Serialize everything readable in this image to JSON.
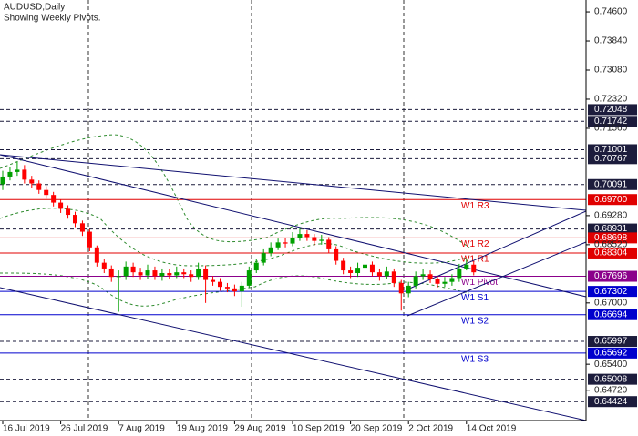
{
  "chart_data": {
    "type": "candlestick",
    "title": "AUDUSD,Daily",
    "subtitle": "Showing Weekly Pivots.",
    "categories": [
      "16 Jul 2019",
      null,
      null,
      null,
      null,
      null,
      null,
      null,
      "26 Jul 2019",
      null,
      null,
      null,
      null,
      null,
      null,
      null,
      "7 Aug 2019",
      null,
      null,
      null,
      null,
      null,
      null,
      null,
      "19 Aug 2019",
      null,
      null,
      null,
      null,
      null,
      null,
      null,
      "29 Aug 2019",
      null,
      null,
      null,
      null,
      null,
      null,
      null,
      "10 Sep 2019",
      null,
      null,
      null,
      null,
      null,
      null,
      null,
      "20 Sep 2019",
      null,
      null,
      null,
      null,
      null,
      null,
      null,
      "2 Oct 2019",
      null,
      null,
      null,
      null,
      null,
      null,
      null,
      "14 Oct 2019",
      null
    ],
    "open": [
      0.701,
      0.703,
      0.7042,
      0.7048,
      0.7022,
      0.7012,
      0.6995,
      0.6982,
      0.6962,
      0.6946,
      0.693,
      0.6908,
      0.6886,
      0.6845,
      0.6805,
      0.679,
      0.6768,
      0.677,
      0.6795,
      0.678,
      0.6772,
      0.6785,
      0.677,
      0.6778,
      0.6772,
      0.678,
      0.6775,
      0.6768,
      0.679,
      0.676,
      0.6755,
      0.6742,
      0.6738,
      0.673,
      0.6745,
      0.6785,
      0.6805,
      0.683,
      0.6845,
      0.6858,
      0.6855,
      0.687,
      0.688,
      0.6872,
      0.6862,
      0.6865,
      0.684,
      0.681,
      0.6785,
      0.6778,
      0.6792,
      0.68,
      0.678,
      0.677,
      0.6782,
      0.6752,
      0.6725,
      0.6745,
      0.677,
      0.6775,
      0.6762,
      0.675,
      0.6755,
      0.6765,
      0.679,
      0.68
    ],
    "high": [
      0.7045,
      0.7055,
      0.7068,
      0.706,
      0.7032,
      0.702,
      0.7005,
      0.699,
      0.697,
      0.6955,
      0.6938,
      0.6915,
      0.6892,
      0.685,
      0.6815,
      0.6798,
      0.6785,
      0.6808,
      0.6805,
      0.6792,
      0.68,
      0.6795,
      0.679,
      0.6788,
      0.6795,
      0.679,
      0.6785,
      0.6805,
      0.6798,
      0.677,
      0.6765,
      0.6752,
      0.6748,
      0.6755,
      0.6795,
      0.6815,
      0.684,
      0.6858,
      0.6868,
      0.687,
      0.6885,
      0.6895,
      0.689,
      0.688,
      0.6878,
      0.6872,
      0.6848,
      0.6818,
      0.6795,
      0.6805,
      0.6812,
      0.6808,
      0.679,
      0.6795,
      0.679,
      0.676,
      0.6755,
      0.6782,
      0.6788,
      0.6785,
      0.677,
      0.6768,
      0.6775,
      0.6802,
      0.6815,
      0.6808
    ],
    "low": [
      0.6995,
      0.702,
      0.7032,
      0.7012,
      0.7,
      0.6985,
      0.6972,
      0.6952,
      0.6935,
      0.692,
      0.6898,
      0.6875,
      0.6835,
      0.6795,
      0.6778,
      0.6755,
      0.6677,
      0.676,
      0.6768,
      0.676,
      0.6762,
      0.676,
      0.6758,
      0.6762,
      0.6765,
      0.6765,
      0.6755,
      0.676,
      0.67,
      0.6745,
      0.6732,
      0.6728,
      0.6718,
      0.669,
      0.674,
      0.6778,
      0.6798,
      0.6822,
      0.6838,
      0.6845,
      0.6848,
      0.6862,
      0.6862,
      0.685,
      0.6852,
      0.683,
      0.68,
      0.6775,
      0.6765,
      0.6768,
      0.6785,
      0.677,
      0.6758,
      0.6762,
      0.6742,
      0.668,
      0.6715,
      0.6738,
      0.676,
      0.6752,
      0.674,
      0.6742,
      0.6745,
      0.6755,
      0.6785,
      0.6772
    ],
    "close": [
      0.703,
      0.7042,
      0.7048,
      0.7022,
      0.7012,
      0.6995,
      0.6982,
      0.6962,
      0.6946,
      0.693,
      0.6908,
      0.6886,
      0.6845,
      0.6805,
      0.679,
      0.6768,
      0.677,
      0.6795,
      0.678,
      0.6772,
      0.6785,
      0.677,
      0.6778,
      0.6772,
      0.678,
      0.6775,
      0.6768,
      0.679,
      0.676,
      0.6755,
      0.6742,
      0.6738,
      0.673,
      0.6745,
      0.6785,
      0.6805,
      0.683,
      0.6845,
      0.6858,
      0.6855,
      0.687,
      0.688,
      0.6872,
      0.6862,
      0.6865,
      0.684,
      0.681,
      0.6785,
      0.6778,
      0.6792,
      0.68,
      0.678,
      0.677,
      0.6782,
      0.6752,
      0.6725,
      0.6745,
      0.677,
      0.6775,
      0.6762,
      0.675,
      0.6755,
      0.6765,
      0.679,
      0.68,
      0.678
    ],
    "up_color": "#00a000",
    "down_color": "#ff0000",
    "ylim": [
      0.6393,
      0.7491
    ],
    "yticks": [
      {
        "value": 0.746,
        "label": "0.74600"
      },
      {
        "value": 0.7384,
        "label": "0.73840"
      },
      {
        "value": 0.7308,
        "label": "0.73080"
      },
      {
        "value": 0.7232,
        "label": "0.72320"
      },
      {
        "value": 0.7156,
        "label": "0.71560"
      },
      {
        "value": 0.6928,
        "label": "0.69280"
      },
      {
        "value": 0.6852,
        "label": "0.68520"
      },
      {
        "value": 0.67,
        "label": "0.67000"
      },
      {
        "value": 0.654,
        "label": "0.65400"
      },
      {
        "value": 0.6472,
        "label": "0.64720"
      }
    ],
    "levels": [
      {
        "value": 0.72048,
        "label": "0.72048",
        "style": "dashed",
        "color": "#1c1c3c"
      },
      {
        "value": 0.71742,
        "label": "0.71742",
        "style": "dashed",
        "color": "#1c1c3c"
      },
      {
        "value": 0.71001,
        "label": "0.71001",
        "style": "dashed",
        "color": "#1c1c3c"
      },
      {
        "value": 0.70767,
        "label": "0.70767",
        "style": "dashed",
        "color": "#1c1c3c"
      },
      {
        "value": 0.70091,
        "label": "0.70091",
        "style": "dashed",
        "color": "#1c1c3c"
      },
      {
        "value": 0.697,
        "label": "0.69700",
        "style": "solid",
        "color": "#e00000",
        "name": "W1 R3"
      },
      {
        "value": 0.68931,
        "label": "0.68931",
        "style": "dashed",
        "color": "#1c1c3c"
      },
      {
        "value": 0.68698,
        "label": "0.68698",
        "style": "solid",
        "color": "#e00000",
        "name": "W1 R2"
      },
      {
        "value": 0.68304,
        "label": "0.68304",
        "style": "solid",
        "color": "#e00000",
        "name": "W1 R1"
      },
      {
        "value": 0.67696,
        "label": "0.67696",
        "style": "solid",
        "color": "#8b008b",
        "name": "W1 Pivot"
      },
      {
        "value": 0.67302,
        "label": "0.67302",
        "style": "solid",
        "color": "#0000cd",
        "name": "W1 S1"
      },
      {
        "value": 0.66694,
        "label": "0.66694",
        "style": "solid",
        "color": "#0000cd",
        "name": "W1 S2"
      },
      {
        "value": 0.65997,
        "label": "0.65997",
        "style": "dashed",
        "color": "#1c1c3c"
      },
      {
        "value": 0.65692,
        "label": "0.65692",
        "style": "solid",
        "color": "#0000cd",
        "name": "W1 S3"
      },
      {
        "value": 0.65008,
        "label": "0.65008",
        "style": "dashed",
        "color": "#1c1c3c"
      },
      {
        "value": 0.64424,
        "label": "0.64424",
        "style": "dashed",
        "color": "#1c1c3c"
      }
    ]
  }
}
